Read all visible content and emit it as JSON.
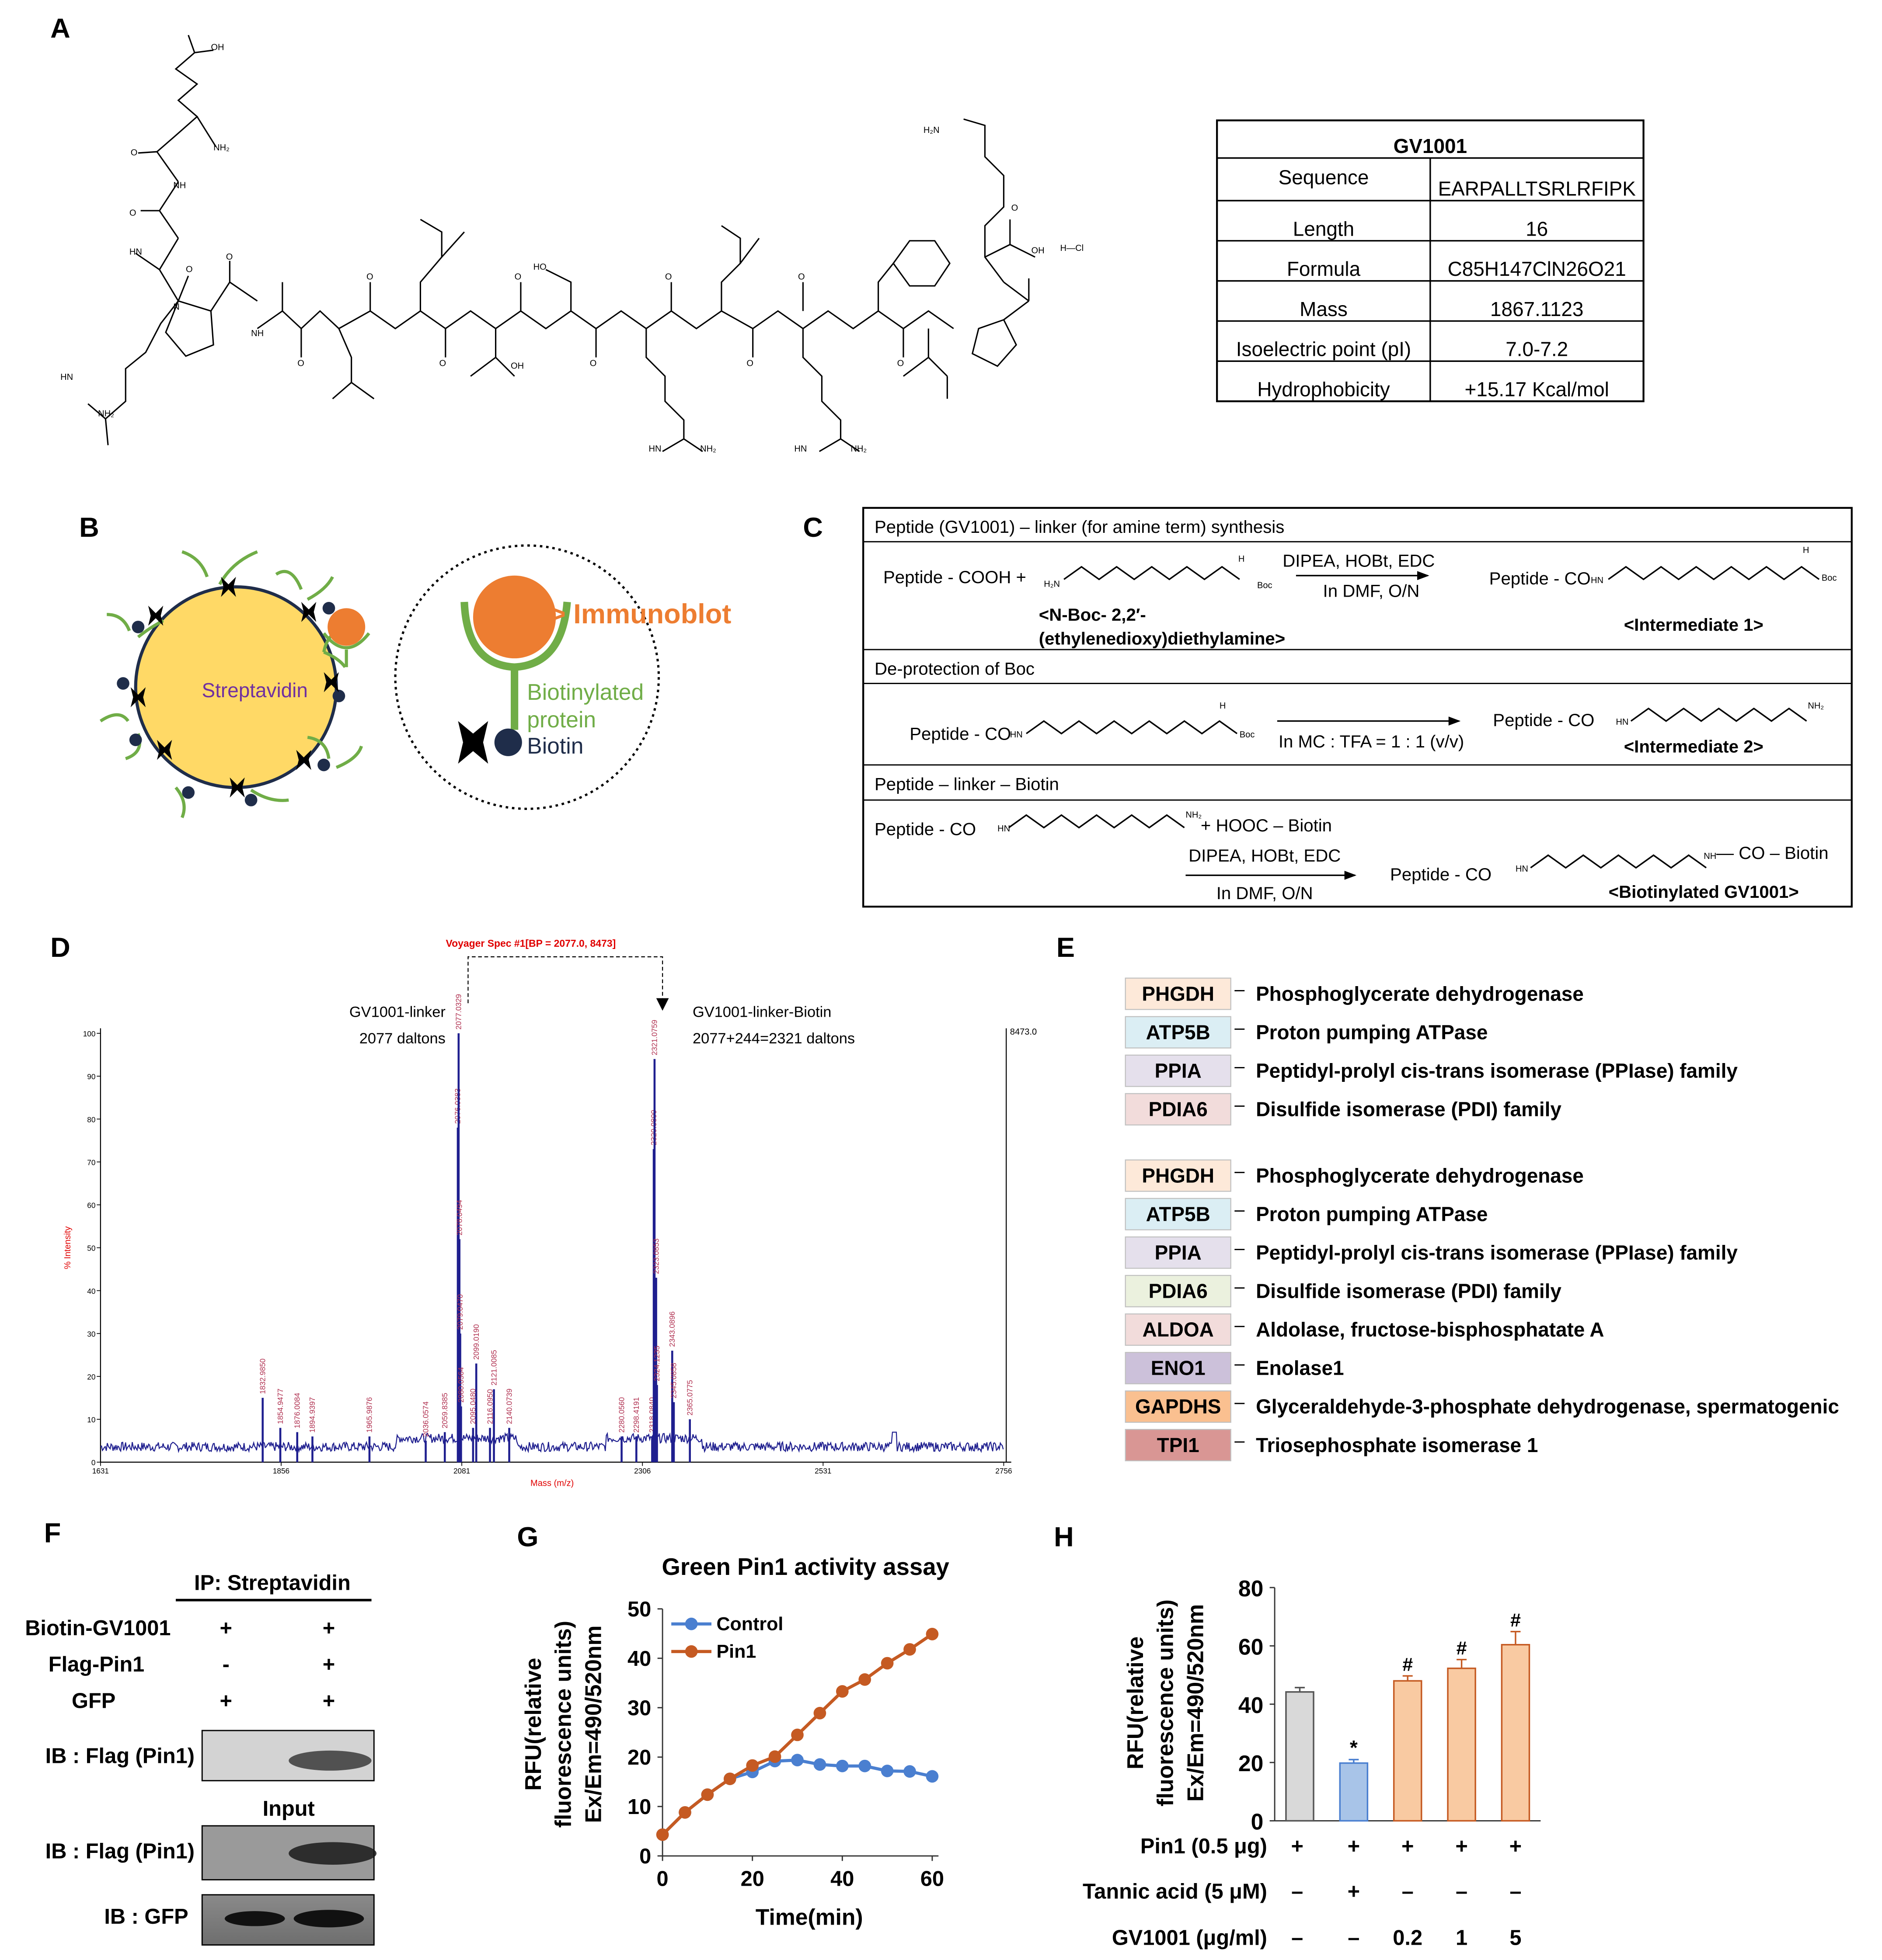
{
  "panels": {
    "A": "A",
    "B": "B",
    "C": "C",
    "D": "D",
    "E": "E",
    "F": "F",
    "G": "G",
    "H": "H"
  },
  "structure": {
    "labels": {
      "oh": "OH",
      "nh2": "NH₂",
      "nh": "NH",
      "o": "O",
      "n": "N",
      "h": "H",
      "hn": "HN",
      "ho": "HO",
      "hcl": "H—Cl",
      "h2n": "H₂N"
    }
  },
  "gv_table": {
    "title": "GV1001",
    "rows": [
      {
        "label": "Sequence",
        "value": "EARPALLTSRLRFIPK"
      },
      {
        "label": "Length",
        "value": "16"
      },
      {
        "label": "Formula",
        "value": "C85H147ClN26O21"
      },
      {
        "label": "Mass",
        "value": "1867.1123"
      },
      {
        "label": "Isoelectric point (pI)",
        "value": "7.0-7.2"
      },
      {
        "label": "Hydrophobicity",
        "value": "+15.17 Kcal/mol"
      }
    ]
  },
  "panel_b": {
    "streptavidin": "Streptavidin",
    "immunoblot": "> Immunoblot",
    "biotinylated": "Biotinylated",
    "protein": "protein",
    "biotin": "Biotin"
  },
  "panel_c": {
    "s1_title": "Peptide (GV1001) – linker (for amine term) synthesis",
    "s1_reactant": "Peptide - COOH  +",
    "s1_cond_top": "DIPEA, HOBt, EDC",
    "s1_cond_bottom": "In DMF, O/N",
    "s1_product": "Peptide - CO",
    "s1_name_line1": "<N-Boc- 2,2′-",
    "s1_name_line2": "(ethylenedioxy)diethylamine>",
    "s1_result": "<Intermediate 1>",
    "s2_title": "De-protection of Boc",
    "s2_reactant": "Peptide - CO",
    "s2_cond": "In MC : TFA = 1 : 1 (v/v)",
    "s2_product": "Peptide - CO",
    "s2_result": "<Intermediate 2>",
    "s3_title": "Peptide – linker – Biotin",
    "s3_reactant": "Peptide - CO",
    "s3_plus": "+   HOOC – Biotin",
    "s3_cond_top": "DIPEA, HOBt, EDC",
    "s3_cond_bottom": "In DMF, O/N",
    "s3_product": "Peptide - CO",
    "s3_tail": "— CO – Biotin",
    "s3_result": "<Biotinylated GV1001>",
    "small": {
      "h2n": "H₂N",
      "nh2": "NH₂",
      "hn": "HN",
      "nh": "NH",
      "h": "H",
      "boc": "Boc"
    }
  },
  "panel_d": {
    "title": "Voyager Spec #1[BP = 2077.0, 8473]",
    "left_label_1": "GV1001-linker",
    "left_label_2": "2077 daltons",
    "right_label_1": "GV1001-linker-Biotin",
    "right_label_2": "2077+244=2321 daltons",
    "ylabel": "% Intensity",
    "xlabel": "Mass (m/z)",
    "max_label": "8473.0"
  },
  "chart_data": [
    {
      "type": "line",
      "title": "Voyager Spec #1[BP = 2077.0, 8473]",
      "xlabel": "Mass (m/z)",
      "ylabel": "% Intensity",
      "xlim": [
        1631,
        2756
      ],
      "ylim": [
        0,
        100
      ],
      "x_ticks": [
        "1631",
        "1856",
        "2081",
        "2306",
        "2531",
        "2756"
      ],
      "y_ticks": [
        "0",
        "10",
        "20",
        "30",
        "40",
        "50",
        "60",
        "70",
        "80",
        "90",
        "100"
      ],
      "peaks": [
        {
          "mz": 1832.985,
          "intensity": 15,
          "label": "1832.9850"
        },
        {
          "mz": 1854.9477,
          "intensity": 8,
          "label": "1854.9477"
        },
        {
          "mz": 1876.0084,
          "intensity": 7,
          "label": "1876.0084"
        },
        {
          "mz": 1894.9397,
          "intensity": 6,
          "label": "1894.9397"
        },
        {
          "mz": 1965.9876,
          "intensity": 6,
          "label": "1965.9876"
        },
        {
          "mz": 2036.0574,
          "intensity": 5,
          "label": "2036.0574"
        },
        {
          "mz": 2059.8385,
          "intensity": 7,
          "label": "2059.8385"
        },
        {
          "mz": 2076.0383,
          "intensity": 78,
          "label": "2076.0383"
        },
        {
          "mz": 2077.0329,
          "intensity": 100,
          "label": "2077.0329"
        },
        {
          "mz": 2078.0494,
          "intensity": 52,
          "label": "2078.0494"
        },
        {
          "mz": 2079.047,
          "intensity": 30,
          "label": "2079.0470"
        },
        {
          "mz": 2080.0564,
          "intensity": 13,
          "label": "2080.0564"
        },
        {
          "mz": 2095.048,
          "intensity": 8,
          "label": "2095.0480"
        },
        {
          "mz": 2099.019,
          "intensity": 23,
          "label": "2099.0190"
        },
        {
          "mz": 2116.095,
          "intensity": 8,
          "label": "2116.0950"
        },
        {
          "mz": 2121.0085,
          "intensity": 17,
          "label": "2121.0085"
        },
        {
          "mz": 2140.0739,
          "intensity": 8,
          "label": "2140.0739"
        },
        {
          "mz": 2280.056,
          "intensity": 6,
          "label": "2280.0560"
        },
        {
          "mz": 2298.4191,
          "intensity": 6,
          "label": "2298.4191"
        },
        {
          "mz": 2318.084,
          "intensity": 6,
          "label": "2318.0840"
        },
        {
          "mz": 2320.0899,
          "intensity": 73,
          "label": "2320.0899"
        },
        {
          "mz": 2321.0759,
          "intensity": 94,
          "label": "2321.0759"
        },
        {
          "mz": 2323.0853,
          "intensity": 43,
          "label": "2323.0853"
        },
        {
          "mz": 2324.1235,
          "intensity": 18,
          "label": "2324.1235"
        },
        {
          "mz": 2343.0896,
          "intensity": 26,
          "label": "2343.0896"
        },
        {
          "mz": 2345.0858,
          "intensity": 14,
          "label": "2345.0858"
        },
        {
          "mz": 2365.0775,
          "intensity": 10,
          "label": "2365.0775"
        }
      ]
    },
    {
      "type": "line",
      "title": "Green Pin1 activity assay",
      "xlabel": "Time(min)",
      "ylabel": "RFU(relative fluorescence units) Ex/Em=490/520nm",
      "xlim": [
        0,
        60
      ],
      "ylim": [
        0,
        50
      ],
      "x_ticks": [
        "0",
        "20",
        "40",
        "60"
      ],
      "y_ticks": [
        "0",
        "10",
        "20",
        "30",
        "40",
        "50"
      ],
      "x": [
        0,
        5,
        10,
        15,
        20,
        25,
        30,
        35,
        40,
        45,
        50,
        55,
        60
      ],
      "series": [
        {
          "name": "Control",
          "color": "#4a7fd0",
          "values": [
            4.3,
            8.8,
            12.4,
            15.6,
            17.0,
            19.2,
            19.4,
            18.5,
            18.2,
            18.2,
            17.2,
            17.1,
            16.1
          ]
        },
        {
          "name": "Pin1",
          "color": "#c55a22",
          "values": [
            4.3,
            8.8,
            12.4,
            15.6,
            18.3,
            20.1,
            24.5,
            28.9,
            33.3,
            35.7,
            39.0,
            41.8,
            44.9
          ]
        }
      ]
    },
    {
      "type": "bar",
      "xlabel": "",
      "ylabel": "RFU(relative fluorescence units) Ex/Em=490/520nm",
      "ylim": [
        0,
        80
      ],
      "y_ticks": [
        "0",
        "20",
        "40",
        "60",
        "80"
      ],
      "categories": [
        "1",
        "2",
        "3",
        "4",
        "5"
      ],
      "values": [
        44.2,
        19.8,
        48.0,
        52.3,
        60.4
      ],
      "errors": [
        1.5,
        1.2,
        1.7,
        3.0,
        4.5
      ],
      "fills": [
        "#d9d9d9",
        "#a8c4e8",
        "#f9caa2",
        "#f9caa2",
        "#f9caa2"
      ],
      "edges": [
        "#555555",
        "#4a7fd0",
        "#c55a22",
        "#c55a22",
        "#c55a22"
      ],
      "significance": [
        "",
        "*",
        "#",
        "#",
        "#"
      ],
      "conditions": [
        {
          "label": "Pin1 (0.5 μg)",
          "values": [
            "+",
            "+",
            "+",
            "+",
            "+"
          ]
        },
        {
          "label": "Tannic acid (5 μM)",
          "values": [
            "–",
            "+",
            "–",
            "–",
            "–"
          ]
        },
        {
          "label": "GV1001 (μg/ml)",
          "values": [
            "–",
            "–",
            "0.2",
            "1",
            "5"
          ]
        }
      ]
    }
  ],
  "panel_e": {
    "group1": [
      {
        "abbr": "PHGDH",
        "name": "Phosphoglycerate dehydrogenase",
        "color": "#fde9d9"
      },
      {
        "abbr": "ATP5B",
        "name": "Proton pumping ATPase",
        "color": "#dbeef4"
      },
      {
        "abbr": "PPIA",
        "name": "Peptidyl-prolyl cis-trans isomerase (PPIase) family",
        "color": "#e5e0ec"
      },
      {
        "abbr": "PDIA6",
        "name": "Disulfide isomerase (PDI) family",
        "color": "#f2dcdb"
      }
    ],
    "group2": [
      {
        "abbr": "PHGDH",
        "name": "Phosphoglycerate dehydrogenase",
        "color": "#fde9d9"
      },
      {
        "abbr": "ATP5B",
        "name": "Proton pumping ATPase",
        "color": "#dbeef4"
      },
      {
        "abbr": "PPIA",
        "name": "Peptidyl-prolyl cis-trans isomerase (PPIase) family",
        "color": "#e5e0ec"
      },
      {
        "abbr": "PDIA6",
        "name": "Disulfide isomerase (PDI) family",
        "color": "#ebf1de"
      },
      {
        "abbr": "ALDOA",
        "name": "Aldolase, fructose-bisphosphatate A",
        "color": "#f2dcdb"
      },
      {
        "abbr": "ENO1",
        "name": "Enolase1",
        "color": "#ccc1da"
      },
      {
        "abbr": "GAPDHS",
        "name": "Glyceraldehyde-3-phosphate dehydrogenase, spermatogenic",
        "color": "#fac090"
      },
      {
        "abbr": "TPI1",
        "name": "Triosephosphate isomerase 1",
        "color": "#d99694"
      }
    ]
  },
  "panel_f": {
    "ip": "IP: Streptavidin",
    "rows": [
      {
        "label": "Biotin-GV1001",
        "values": [
          "+",
          "+"
        ]
      },
      {
        "label": "Flag-Pin1",
        "values": [
          "-",
          "+"
        ]
      },
      {
        "label": "GFP",
        "values": [
          "+",
          "+"
        ]
      }
    ],
    "ib1": "IB : Flag (Pin1)",
    "input": "Input",
    "ib2": "IB : Flag (Pin1)",
    "ib3": "IB : GFP"
  },
  "panel_g": {
    "title": "Green Pin1 activity assay",
    "legend_control": "Control",
    "legend_pin1": "Pin1",
    "xlabel": "Time(min)",
    "ylabel_1": "RFU(relative",
    "ylabel_2": "fluorescence units)",
    "ylabel_3": "Ex/Em=490/520nm"
  },
  "panel_h": {
    "ylabel_1": "RFU(relative",
    "ylabel_2": "fluorescence units)",
    "ylabel_3": "Ex/Em=490/520nm"
  }
}
